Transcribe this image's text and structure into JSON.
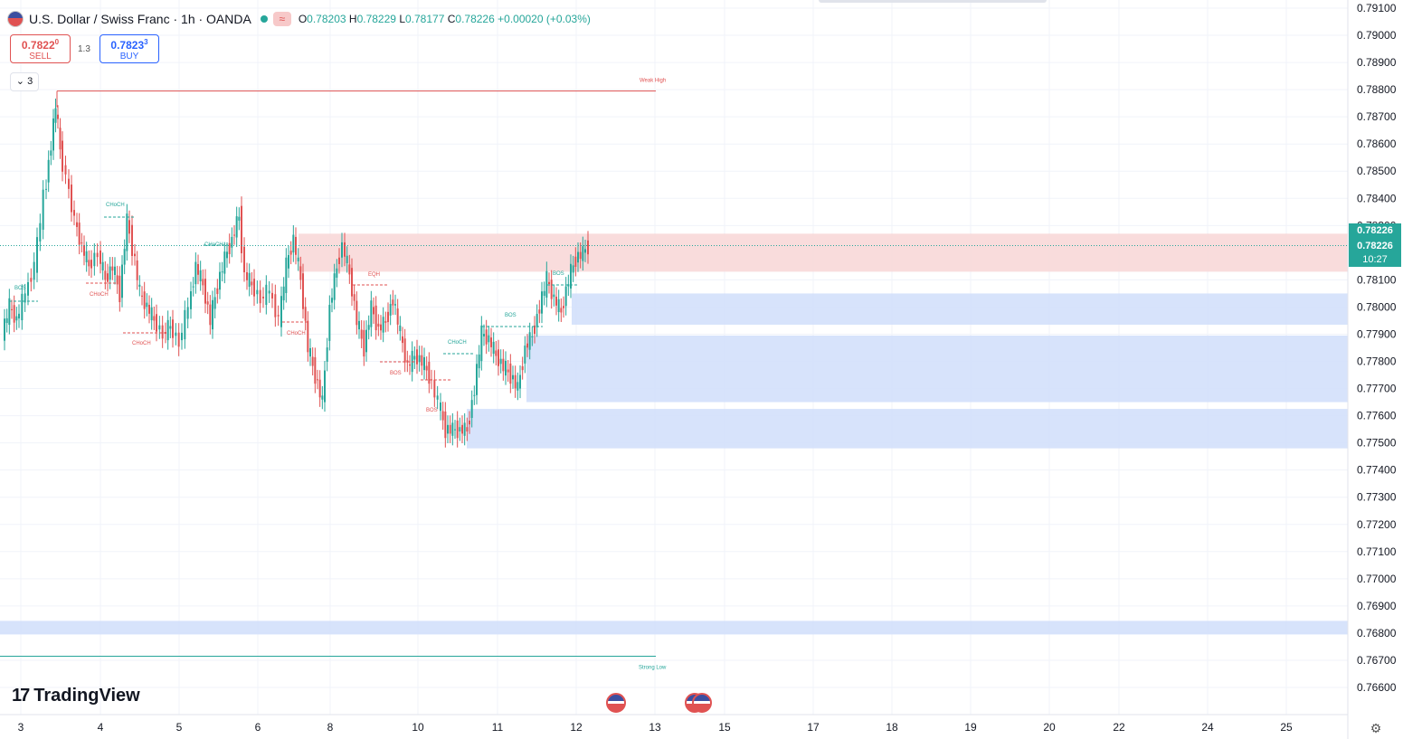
{
  "header": {
    "symbol_title": "U.S. Dollar / Swiss Franc · 1h · OANDA",
    "ohlc": {
      "o_label": "O",
      "o_value": "0.78203",
      "h_label": "H",
      "h_value": "0.78229",
      "l_label": "L",
      "l_value": "0.78177",
      "c_label": "C",
      "c_value": "0.78226",
      "change": "+0.00020 (+0.03%)"
    },
    "wave_icon": "≈"
  },
  "trade": {
    "sell_price": "0.7822",
    "sell_price_sup": "0",
    "sell_label": "SELL",
    "spread": "1.3",
    "buy_price": "0.7823",
    "buy_price_sup": "3",
    "buy_label": "BUY"
  },
  "indicators_toggle": {
    "chevron": "⌄",
    "count": "3"
  },
  "logo_text": "TradingView",
  "colors": {
    "up": "#26a69a",
    "down": "#e05252",
    "supply_zone": "#f8d6d6",
    "demand_zone": "#d3e0fb",
    "structure_bull": "#26a69a",
    "structure_bear": "#e05252"
  },
  "price_axis": {
    "ticks": [
      "0.79100",
      "0.79000",
      "0.78900",
      "0.78800",
      "0.78700",
      "0.78600",
      "0.78500",
      "0.78400",
      "0.78300",
      "0.78226",
      "0.78100",
      "0.78000",
      "0.77900",
      "0.77800",
      "0.77700",
      "0.77600",
      "0.77500",
      "0.77400",
      "0.77300",
      "0.77200",
      "0.77100",
      "0.77000",
      "0.76900",
      "0.76800",
      "0.76700",
      "0.76600"
    ],
    "current_price": "0.78226",
    "current_price_2": "0.78226",
    "countdown": "10:27"
  },
  "time_axis": {
    "labels": [
      "3",
      "4",
      "5",
      "6",
      "8",
      "10",
      "11",
      "12",
      "13",
      "15",
      "17",
      "18",
      "19",
      "20",
      "22",
      "24",
      "25"
    ]
  },
  "chart_data": {
    "type": "candlestick",
    "symbol": "USDCHF",
    "timeframe": "1h",
    "ylim": [
      0.7655,
      0.7912
    ],
    "current_price": 0.78226,
    "ohlc_last": {
      "open": 0.78203,
      "high": 0.78229,
      "low": 0.78177,
      "close": 0.78226
    },
    "annotations": {
      "weak_high": {
        "label": "Weak High",
        "price": 0.78795
      },
      "strong_low": {
        "label": "Strong Low",
        "price": 0.76715
      },
      "structure_labels": [
        "BOS",
        "CHoCH",
        "CHoCH",
        "CHoCH",
        "CHoCH",
        "CHoCH",
        "EQH",
        "BOS",
        "BOS",
        "CHoCH",
        "BOS",
        "BOS"
      ],
      "supply_zones": [
        {
          "top": 0.7827,
          "bottom": 0.7813
        }
      ],
      "demand_zones": [
        {
          "top": 0.7805,
          "bottom": 0.77935
        },
        {
          "top": 0.77895,
          "bottom": 0.7765
        },
        {
          "top": 0.77625,
          "bottom": 0.7748
        },
        {
          "top": 0.76845,
          "bottom": 0.76795
        }
      ]
    }
  }
}
